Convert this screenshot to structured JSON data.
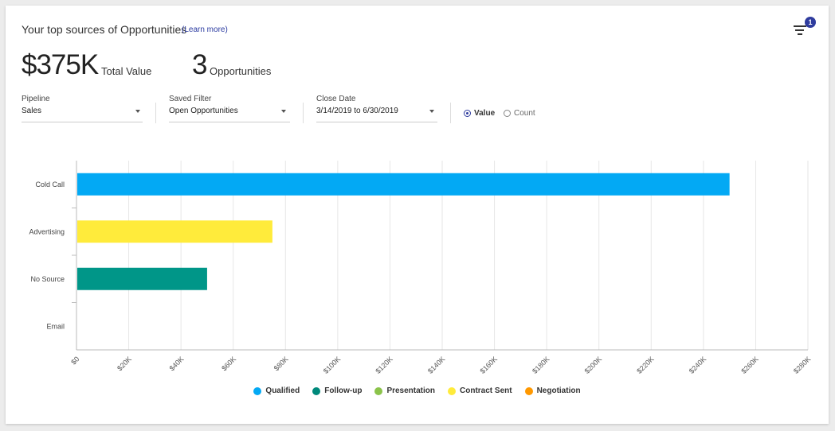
{
  "header": {
    "title": "Your top sources of Opportunities",
    "learn_more": "(Learn more)",
    "filter_badge": "1"
  },
  "summary": {
    "total_value": "$375K",
    "total_value_label": "Total Value",
    "opportunities": "3",
    "opportunities_label": "Opportunities"
  },
  "filters": {
    "pipeline": {
      "label": "Pipeline",
      "value": "Sales"
    },
    "saved_filter": {
      "label": "Saved Filter",
      "value": "Open Opportunities"
    },
    "close_date": {
      "label": "Close Date",
      "value": "3/14/2019 to 6/30/2019"
    },
    "value_label": "Value",
    "count_label": "Count"
  },
  "chart_data": {
    "type": "bar",
    "orientation": "horizontal",
    "categories": [
      "Cold Call",
      "Advertising",
      "No Source",
      "Email"
    ],
    "values": [
      250000,
      75000,
      50000,
      0
    ],
    "bar_colors": [
      "#03a9f4",
      "#ffeb3b",
      "#009688",
      "#03a9f4"
    ],
    "x_ticks": [
      "$0",
      "$20K",
      "$40K",
      "$60K",
      "$80K",
      "$100K",
      "$120K",
      "$140K",
      "$160K",
      "$180K",
      "$200K",
      "$220K",
      "$240K",
      "$260K",
      "$280K"
    ],
    "xlim": [
      0,
      280000
    ],
    "grid": true,
    "legend_position": "bottom",
    "legend": [
      {
        "name": "Qualified",
        "color": "#03a9f4"
      },
      {
        "name": "Follow-up",
        "color": "#00897b"
      },
      {
        "name": "Presentation",
        "color": "#8bc34a"
      },
      {
        "name": "Contract Sent",
        "color": "#ffeb3b"
      },
      {
        "name": "Negotiation",
        "color": "#ff9800"
      }
    ]
  }
}
